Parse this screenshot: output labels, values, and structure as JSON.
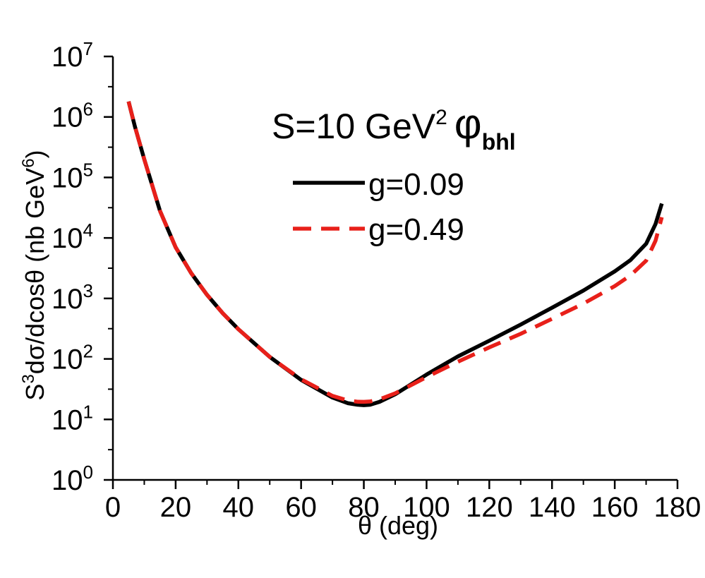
{
  "chart_data": {
    "type": "line",
    "x_axis": {
      "label": "θ (deg)",
      "range": [
        0,
        180
      ],
      "ticks": [
        0,
        20,
        40,
        60,
        80,
        100,
        120,
        140,
        160,
        180
      ],
      "tick_labels": [
        "0",
        "20",
        "40",
        "60",
        "80",
        "100",
        "120",
        "140",
        "160",
        "180"
      ]
    },
    "y_axis": {
      "label_parts": {
        "prefix": "S",
        "prefix_sup": "3",
        "middle": "dσ/dcosθ (nb GeV",
        "middle_sup": "6",
        "suffix": ")"
      },
      "scale": "log",
      "range": [
        1,
        10000000
      ],
      "tick_base": "10",
      "tick_exponents": [
        "0",
        "1",
        "2",
        "3",
        "4",
        "5",
        "6",
        "7"
      ]
    },
    "annotation": {
      "text": "S=10 GeV",
      "sup": "2",
      "symbol": "φ",
      "sub": "bhl"
    },
    "legend_position": "top-right",
    "series": [
      {
        "name": "g=0.09",
        "color": "#000000",
        "style": "solid",
        "x": [
          5,
          7,
          10,
          15,
          20,
          25,
          30,
          35,
          40,
          50,
          60,
          70,
          75,
          78,
          80,
          82,
          85,
          90,
          100,
          110,
          120,
          130,
          140,
          150,
          160,
          165,
          170,
          173,
          175
        ],
        "y": [
          1800000,
          700000,
          200000,
          28000,
          7000,
          2600,
          1150,
          570,
          310,
          108,
          45,
          23,
          18.5,
          17.5,
          17.2,
          17.5,
          19.5,
          26,
          55,
          110,
          200,
          370,
          700,
          1350,
          2800,
          4300,
          8000,
          17000,
          37000
        ]
      },
      {
        "name": "g=0.49",
        "color": "#e8201a",
        "style": "dashed",
        "x": [
          5,
          7,
          10,
          15,
          20,
          25,
          30,
          35,
          40,
          50,
          60,
          70,
          75,
          78,
          80,
          82,
          85,
          90,
          100,
          110,
          120,
          130,
          140,
          150,
          160,
          165,
          170,
          173,
          175
        ],
        "y": [
          1800000,
          700000,
          200000,
          28000,
          7000,
          2600,
          1150,
          570,
          310,
          108,
          46,
          24.5,
          20.5,
          19.6,
          19.5,
          19.8,
          21.5,
          27,
          50,
          90,
          155,
          260,
          460,
          820,
          1600,
          2400,
          4200,
          9000,
          22000
        ]
      }
    ]
  }
}
